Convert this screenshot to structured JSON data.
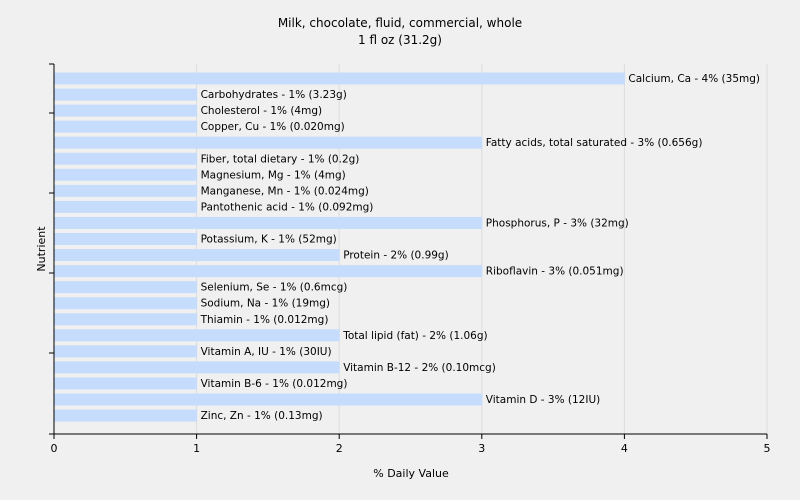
{
  "chart_data": {
    "type": "bar",
    "orientation": "horizontal",
    "title": "Milk, chocolate, fluid, commercial, whole",
    "subtitle": "1 fl oz (31.2g)",
    "xlabel": "% Daily Value",
    "ylabel": "Nutrient",
    "xlim": [
      0,
      5
    ],
    "xticks": [
      "0",
      "1",
      "2",
      "3",
      "4",
      "5"
    ],
    "grid": true,
    "bar_color": "#c6dcfc",
    "bars": [
      {
        "nutrient": "Calcium, Ca",
        "value": 4,
        "label": "Calcium, Ca - 4% (35mg)"
      },
      {
        "nutrient": "Carbohydrates",
        "value": 1,
        "label": "Carbohydrates - 1% (3.23g)"
      },
      {
        "nutrient": "Cholesterol",
        "value": 1,
        "label": "Cholesterol - 1% (4mg)"
      },
      {
        "nutrient": "Copper, Cu",
        "value": 1,
        "label": "Copper, Cu - 1% (0.020mg)"
      },
      {
        "nutrient": "Fatty acids, total saturated",
        "value": 3,
        "label": "Fatty acids, total saturated - 3% (0.656g)"
      },
      {
        "nutrient": "Fiber, total dietary",
        "value": 1,
        "label": "Fiber, total dietary - 1% (0.2g)"
      },
      {
        "nutrient": "Magnesium, Mg",
        "value": 1,
        "label": "Magnesium, Mg - 1% (4mg)"
      },
      {
        "nutrient": "Manganese, Mn",
        "value": 1,
        "label": "Manganese, Mn - 1% (0.024mg)"
      },
      {
        "nutrient": "Pantothenic acid",
        "value": 1,
        "label": "Pantothenic acid - 1% (0.092mg)"
      },
      {
        "nutrient": "Phosphorus, P",
        "value": 3,
        "label": "Phosphorus, P - 3% (32mg)"
      },
      {
        "nutrient": "Potassium, K",
        "value": 1,
        "label": "Potassium, K - 1% (52mg)"
      },
      {
        "nutrient": "Protein",
        "value": 2,
        "label": "Protein - 2% (0.99g)"
      },
      {
        "nutrient": "Riboflavin",
        "value": 3,
        "label": "Riboflavin - 3% (0.051mg)"
      },
      {
        "nutrient": "Selenium, Se",
        "value": 1,
        "label": "Selenium, Se - 1% (0.6mcg)"
      },
      {
        "nutrient": "Sodium, Na",
        "value": 1,
        "label": "Sodium, Na - 1% (19mg)"
      },
      {
        "nutrient": "Thiamin",
        "value": 1,
        "label": "Thiamin - 1% (0.012mg)"
      },
      {
        "nutrient": "Total lipid (fat)",
        "value": 2,
        "label": "Total lipid (fat) - 2% (1.06g)"
      },
      {
        "nutrient": "Vitamin A, IU",
        "value": 1,
        "label": "Vitamin A, IU - 1% (30IU)"
      },
      {
        "nutrient": "Vitamin B-12",
        "value": 2,
        "label": "Vitamin B-12 - 2% (0.10mcg)"
      },
      {
        "nutrient": "Vitamin B-6",
        "value": 1,
        "label": "Vitamin B-6 - 1% (0.012mg)"
      },
      {
        "nutrient": "Vitamin D",
        "value": 3,
        "label": "Vitamin D - 3% (12IU)"
      },
      {
        "nutrient": "Zinc, Zn",
        "value": 1,
        "label": "Zinc, Zn - 1% (0.13mg)"
      }
    ]
  }
}
